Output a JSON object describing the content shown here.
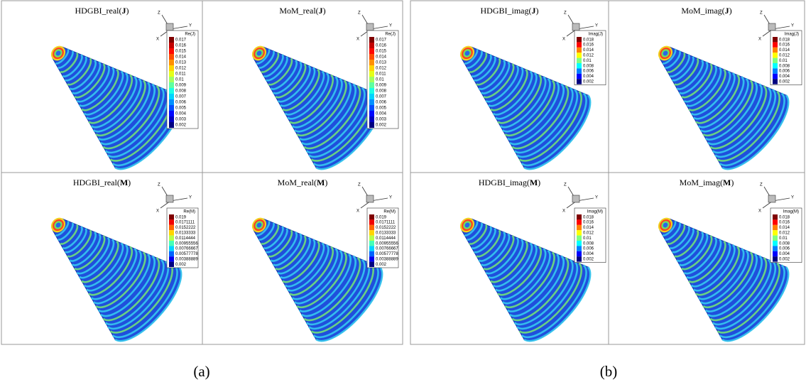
{
  "panels": [
    {
      "title": [
        "HDGBI_real(",
        "J",
        ")"
      ],
      "legend": {
        "title": "Re(J)",
        "levels": [
          0.017,
          0.016,
          0.015,
          0.014,
          0.013,
          0.012,
          0.011,
          0.01,
          0.009,
          0.008,
          0.007,
          0.006,
          0.005,
          0.004,
          0.003,
          0.002
        ]
      }
    },
    {
      "title": [
        "MoM_real(",
        "J",
        ")"
      ],
      "legend": {
        "title": "Re(J)",
        "levels": [
          0.017,
          0.016,
          0.015,
          0.014,
          0.013,
          0.012,
          0.011,
          0.01,
          0.009,
          0.008,
          0.007,
          0.006,
          0.005,
          0.004,
          0.003,
          0.002
        ]
      }
    },
    {
      "title": [
        "HDGBI_real(",
        "M",
        ")"
      ],
      "legend": {
        "title": "Re(M)",
        "levels": [
          0.019,
          0.0171111,
          0.0152222,
          0.0133333,
          0.0114444,
          0.00955556,
          0.00766667,
          0.00577778,
          0.00388889,
          0.002
        ]
      }
    },
    {
      "title": [
        "MoM_real(",
        "M",
        ")"
      ],
      "legend": {
        "title": "Re(M)",
        "levels": [
          0.019,
          0.0171111,
          0.0152222,
          0.0133333,
          0.0114444,
          0.00955556,
          0.00766667,
          0.00577778,
          0.00388889,
          0.002
        ]
      }
    },
    {
      "title": [
        "HDGBI_imag(",
        "J",
        ")"
      ],
      "legend": {
        "title": "Imag(J)",
        "levels": [
          0.018,
          0.016,
          0.014,
          0.012,
          0.01,
          0.008,
          0.006,
          0.004,
          0.002
        ]
      }
    },
    {
      "title": [
        "MoM_imag(",
        "J",
        ")"
      ],
      "legend": {
        "title": "Imag(J)",
        "levels": [
          0.018,
          0.016,
          0.014,
          0.012,
          0.01,
          0.008,
          0.006,
          0.004,
          0.002
        ]
      }
    },
    {
      "title": [
        "HDGBI_imag(",
        "M",
        ")"
      ],
      "legend": {
        "title": "Imag(M)",
        "levels": [
          0.018,
          0.016,
          0.014,
          0.012,
          0.01,
          0.008,
          0.006,
          0.004,
          0.002
        ]
      }
    },
    {
      "title": [
        "MoM_imag(",
        "M",
        ")"
      ],
      "legend": {
        "title": "Imag(M)",
        "levels": [
          0.018,
          0.016,
          0.014,
          0.012,
          0.01,
          0.008,
          0.006,
          0.004,
          0.002
        ]
      }
    }
  ],
  "axis_labels": [
    "Z",
    "Y",
    "X"
  ],
  "captions": [
    "(a)",
    "(b)"
  ]
}
